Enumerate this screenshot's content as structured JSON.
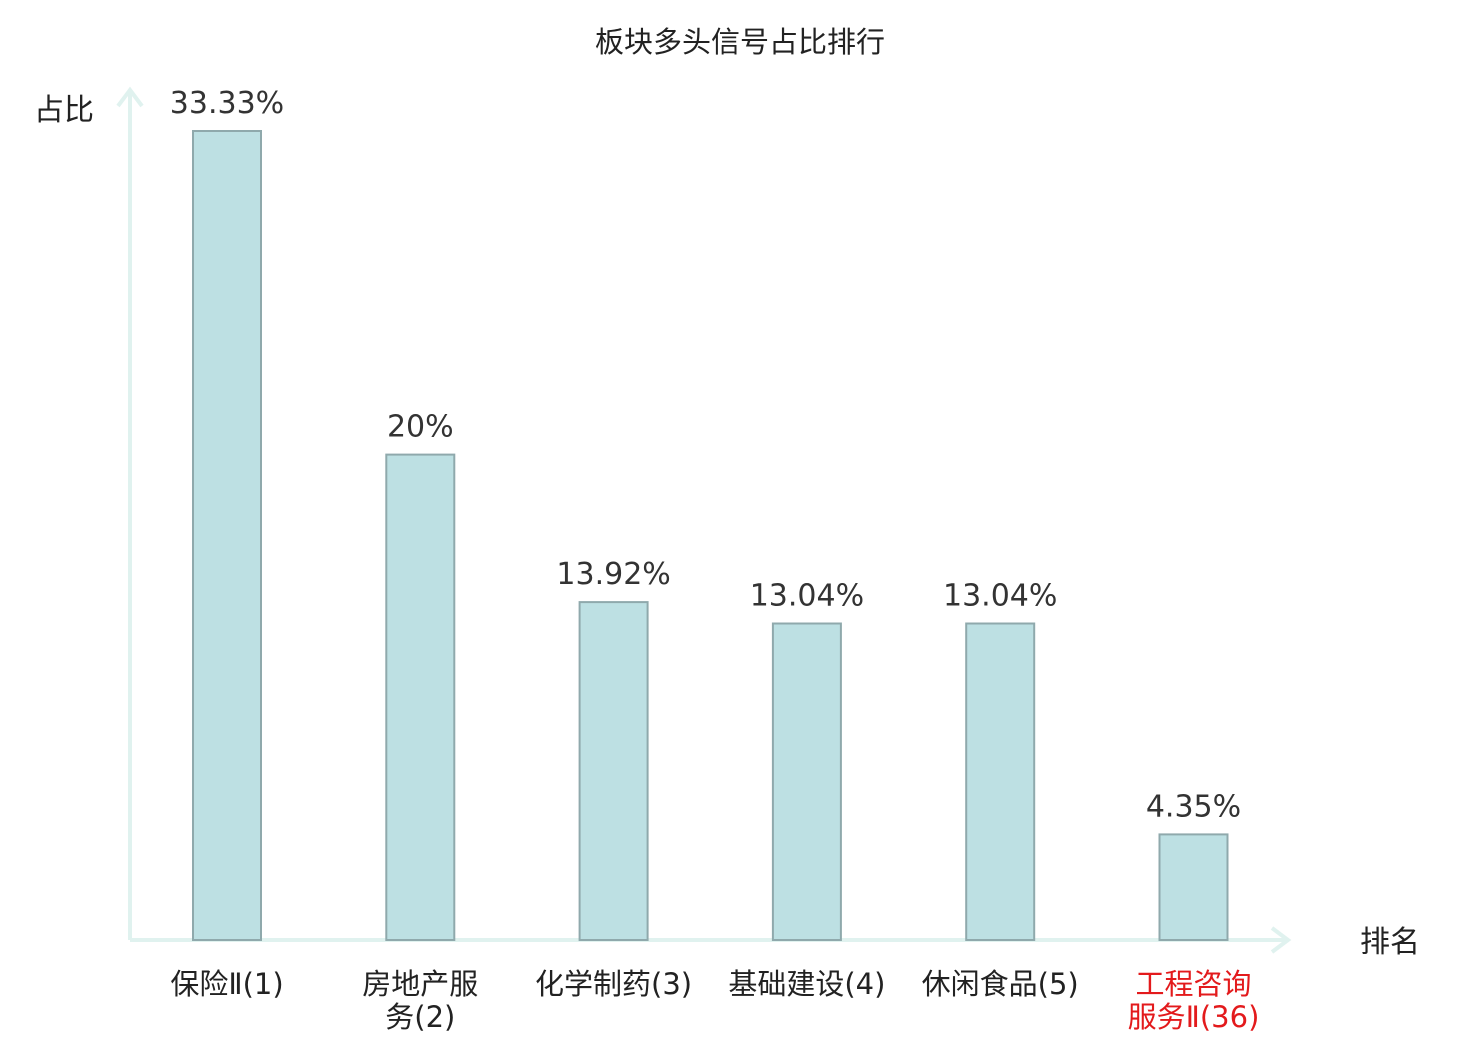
{
  "chart_data": {
    "type": "bar",
    "title": "板块多头信号占比排行",
    "ylabel": "占比",
    "xlabel": "排名",
    "categories": [
      {
        "lines": [
          "保险Ⅱ(1)"
        ],
        "color": "#222222"
      },
      {
        "lines": [
          "房地产服",
          "务(2)"
        ],
        "color": "#222222"
      },
      {
        "lines": [
          "化学制药(3)"
        ],
        "color": "#222222"
      },
      {
        "lines": [
          "基础建设(4)"
        ],
        "color": "#222222"
      },
      {
        "lines": [
          "休闲食品(5)"
        ],
        "color": "#222222"
      },
      {
        "lines": [
          "工程咨询",
          "服务Ⅱ(36)"
        ],
        "color": "#e31a1c"
      }
    ],
    "values": [
      33.33,
      20,
      13.92,
      13.04,
      13.04,
      4.35
    ],
    "value_labels": [
      "33.33%",
      "20%",
      "13.92%",
      "13.04%",
      "13.04%",
      "4.35%"
    ],
    "ylim": [
      0,
      34.5
    ],
    "grid": false,
    "colors": {
      "bar_fill": "#bde0e3",
      "bar_stroke": "#8fa9ac",
      "axis": "#e0f2ef",
      "highlight": "#e31a1c"
    }
  }
}
